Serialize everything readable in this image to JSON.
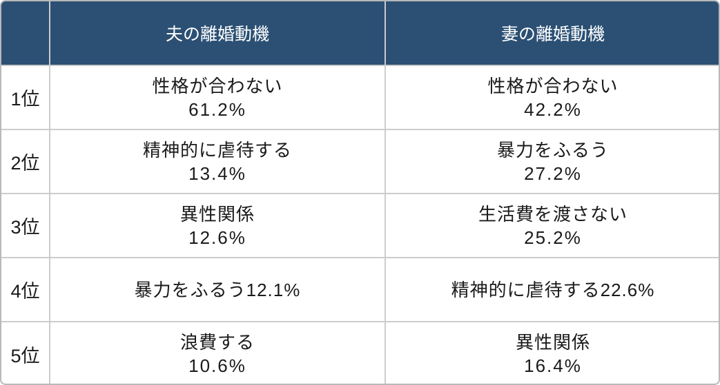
{
  "colors": {
    "header_bg": "#2b5074",
    "header_text": "#ffffff",
    "border": "#cccccc",
    "outer_border": "#b9b9b9",
    "cell_text": "#1a1a1a",
    "background": "#ffffff"
  },
  "table": {
    "header": {
      "rank": "",
      "husband": "夫の離婚動機",
      "wife": "妻の離婚動機"
    },
    "rows": [
      {
        "rank": "1位",
        "husband_lines": [
          "性格が合わない",
          "61.2%"
        ],
        "wife_lines": [
          "性格が合わない",
          "42.2%"
        ]
      },
      {
        "rank": "2位",
        "husband_lines": [
          "精神的に虐待する",
          "13.4%"
        ],
        "wife_lines": [
          "暴力をふるう",
          "27.2%"
        ]
      },
      {
        "rank": "3位",
        "husband_lines": [
          "異性関係",
          "12.6%"
        ],
        "wife_lines": [
          "生活費を渡さない",
          "25.2%"
        ]
      },
      {
        "rank": "4位",
        "husband_lines": [
          "暴力をふるう12.1%"
        ],
        "wife_lines": [
          "精神的に虐待する22.6%"
        ]
      },
      {
        "rank": "5位",
        "husband_lines": [
          "浪費する",
          "10.6%"
        ],
        "wife_lines": [
          "異性関係",
          "16.4%"
        ]
      }
    ]
  },
  "chart_data": {
    "type": "table",
    "title": "",
    "columns": [
      "",
      "夫の離婚動機",
      "妻の離婚動機"
    ],
    "rows": [
      [
        "1位",
        "性格が合わない 61.2%",
        "性格が合わない 42.2%"
      ],
      [
        "2位",
        "精神的に虐待する 13.4%",
        "暴力をふるう 27.2%"
      ],
      [
        "3位",
        "異性関係 12.6%",
        "生活費を渡さない 25.2%"
      ],
      [
        "4位",
        "暴力をふるう12.1%",
        "精神的に虐待する22.6%"
      ],
      [
        "5位",
        "浪費する 10.6%",
        "異性関係 16.4%"
      ]
    ],
    "series": [
      {
        "name": "夫の離婚動機",
        "categories": [
          "性格が合わない",
          "精神的に虐待する",
          "異性関係",
          "暴力をふるう",
          "浪費する"
        ],
        "values": [
          61.2,
          13.4,
          12.6,
          12.1,
          10.6
        ]
      },
      {
        "name": "妻の離婚動機",
        "categories": [
          "性格が合わない",
          "暴力をふるう",
          "生活費を渡さない",
          "精神的に虐待する",
          "異性関係"
        ],
        "values": [
          42.2,
          27.2,
          25.2,
          22.6,
          16.4
        ]
      }
    ]
  }
}
